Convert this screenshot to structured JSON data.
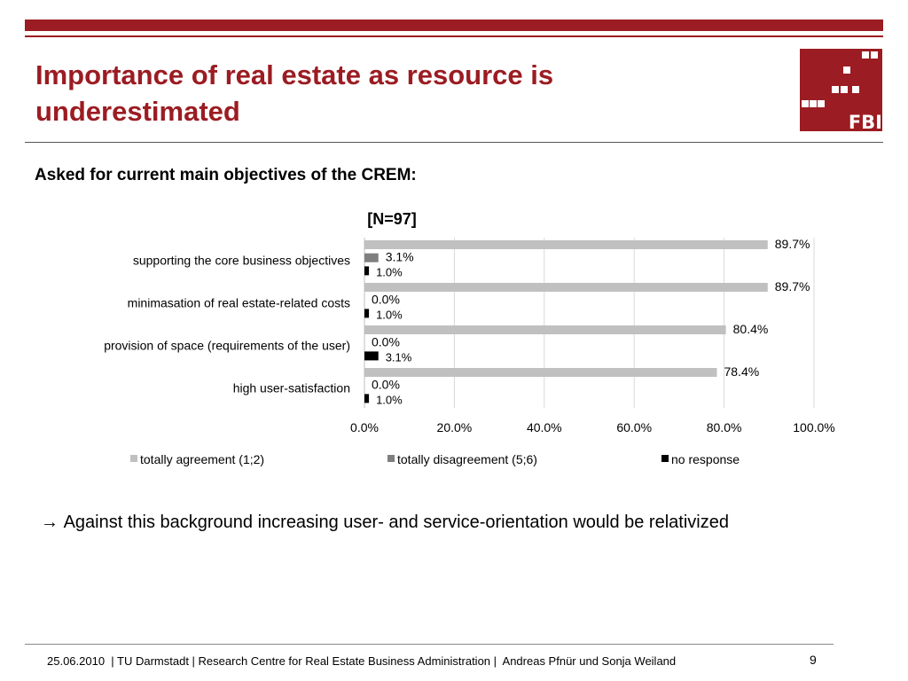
{
  "slide": {
    "title_line1": "Importance of real estate as resource is",
    "title_line2": "underestimated",
    "subtitle": "Asked for current main objectives of the CREM:",
    "note": "Against this background increasing user- and service-orientation would be relativized",
    "footer": "25.06.2010  | TU Darmstadt | Research Centre for Real Estate Business Administration |  Andreas Pfnür und Sonja Weiland",
    "page_number": "9",
    "logo_text": "FBI",
    "colors": {
      "brand": "#9b1c22"
    }
  },
  "chart_data": {
    "type": "bar",
    "orientation": "horizontal",
    "title": "[N=97]",
    "categories": [
      "supporting the core business objectives",
      "minimasation of real estate-related costs",
      "provision of space (requirements of the user)",
      "high user-satisfaction"
    ],
    "series": [
      {
        "name": "totally agreement (1;2)",
        "color": "#c0c0c0",
        "values": [
          89.7,
          89.7,
          80.4,
          78.4
        ],
        "labels": [
          "89.7%",
          "89.7%",
          "80.4%",
          "78.4%"
        ]
      },
      {
        "name": "totally disagreement (5;6)",
        "color": "#7f7f7f",
        "values": [
          3.1,
          0.0,
          0.0,
          0.0
        ],
        "labels": [
          "3.1%",
          "0.0%",
          "0.0%",
          "0.0%"
        ]
      },
      {
        "name": "no response",
        "color": "#000000",
        "values": [
          1.0,
          1.0,
          3.1,
          1.0
        ],
        "labels": [
          "1.0%",
          "1.0%",
          "3.1%",
          "1.0%"
        ]
      }
    ],
    "xlim": [
      0,
      100
    ],
    "xticks": [
      "0.0%",
      "20.0%",
      "40.0%",
      "60.0%",
      "80.0%",
      "100.0%"
    ],
    "xtick_values": [
      0,
      20,
      40,
      60,
      80,
      100
    ],
    "grid": "vertical",
    "legend": "bottom"
  }
}
